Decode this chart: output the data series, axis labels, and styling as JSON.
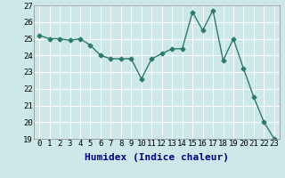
{
  "x": [
    0,
    1,
    2,
    3,
    4,
    5,
    6,
    7,
    8,
    9,
    10,
    11,
    12,
    13,
    14,
    15,
    16,
    17,
    18,
    19,
    20,
    21,
    22,
    23
  ],
  "y": [
    25.2,
    25.0,
    25.0,
    24.9,
    25.0,
    24.6,
    24.0,
    23.8,
    23.8,
    23.8,
    22.6,
    23.8,
    24.1,
    24.4,
    24.4,
    26.6,
    25.5,
    26.7,
    23.7,
    25.0,
    23.2,
    21.5,
    20.0,
    19.0
  ],
  "xlabel": "Humidex (Indice chaleur)",
  "ylim": [
    19,
    27
  ],
  "xlim": [
    -0.5,
    23.5
  ],
  "yticks": [
    19,
    20,
    21,
    22,
    23,
    24,
    25,
    26,
    27
  ],
  "xticks": [
    0,
    1,
    2,
    3,
    4,
    5,
    6,
    7,
    8,
    9,
    10,
    11,
    12,
    13,
    14,
    15,
    16,
    17,
    18,
    19,
    20,
    21,
    22,
    23
  ],
  "line_color": "#2d7a6b",
  "marker": "D",
  "markersize": 2.5,
  "bg_color": "#cde8e8",
  "grid_color": "#ffffff",
  "xlabel_fontsize": 8,
  "tick_fontsize": 6.5
}
